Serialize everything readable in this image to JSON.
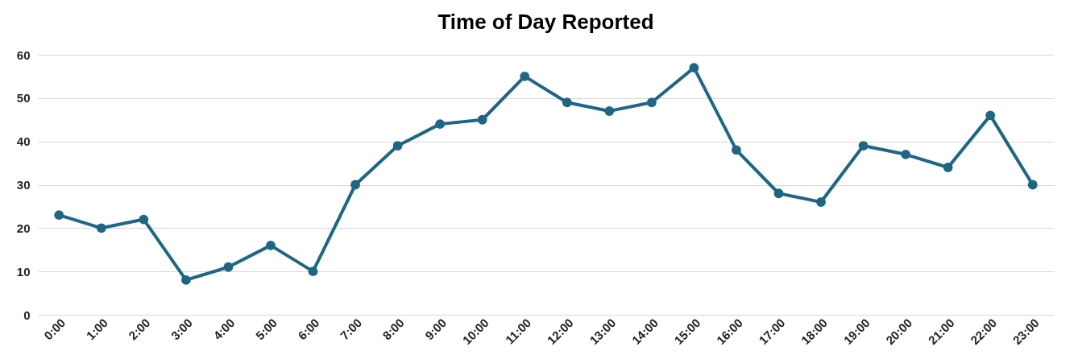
{
  "chart_data": {
    "type": "line",
    "title": "Time of Day Reported",
    "categories": [
      "0:00",
      "1:00",
      "2:00",
      "3:00",
      "4:00",
      "5:00",
      "6:00",
      "7:00",
      "8:00",
      "9:00",
      "10:00",
      "11:00",
      "12:00",
      "13:00",
      "14:00",
      "15:00",
      "16:00",
      "17:00",
      "18:00",
      "19:00",
      "20:00",
      "21:00",
      "22:00",
      "23:00"
    ],
    "series": [
      {
        "color": "#1f6584",
        "values": [
          23,
          20,
          22,
          8,
          11,
          16,
          10,
          30,
          39,
          44,
          45,
          55,
          49,
          47,
          49,
          57,
          38,
          28,
          26,
          39,
          37,
          34,
          46,
          30
        ]
      }
    ],
    "ylim": [
      0,
      60
    ],
    "yticks": [
      0,
      10,
      20,
      30,
      40,
      50,
      60
    ],
    "grid": "y",
    "marker": "circle",
    "line_style": "solid"
  }
}
